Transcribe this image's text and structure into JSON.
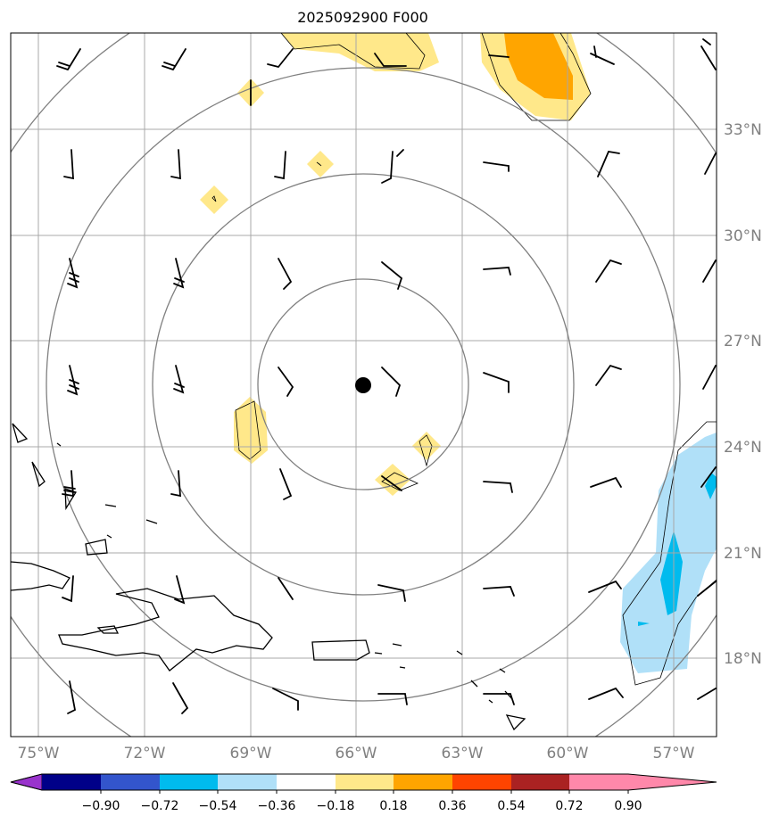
{
  "title": "2025092900 F000",
  "lon_labels": [
    "75°W",
    "72°W",
    "69°W",
    "66°W",
    "63°W",
    "60°W",
    "57°W"
  ],
  "lat_labels": [
    "33°N",
    "30°N",
    "27°N",
    "24°N",
    "21°N",
    "18°N"
  ],
  "colorbar": {
    "ticks": [
      "−0.90",
      "−0.72",
      "−0.54",
      "−0.36",
      "−0.18",
      "0.18",
      "0.36",
      "0.54",
      "0.72",
      "0.90"
    ],
    "colors": [
      "#9933cc",
      "#000088",
      "#3355cc",
      "#00bbee",
      "#b0e0f8",
      "#ffffff",
      "#ffe88a",
      "#ffa500",
      "#ff4400",
      "#aa2222",
      "#ff88aa"
    ]
  },
  "center_marker": {
    "lon": -65.8,
    "lat": 25.7
  },
  "range_ring_count": 4
}
